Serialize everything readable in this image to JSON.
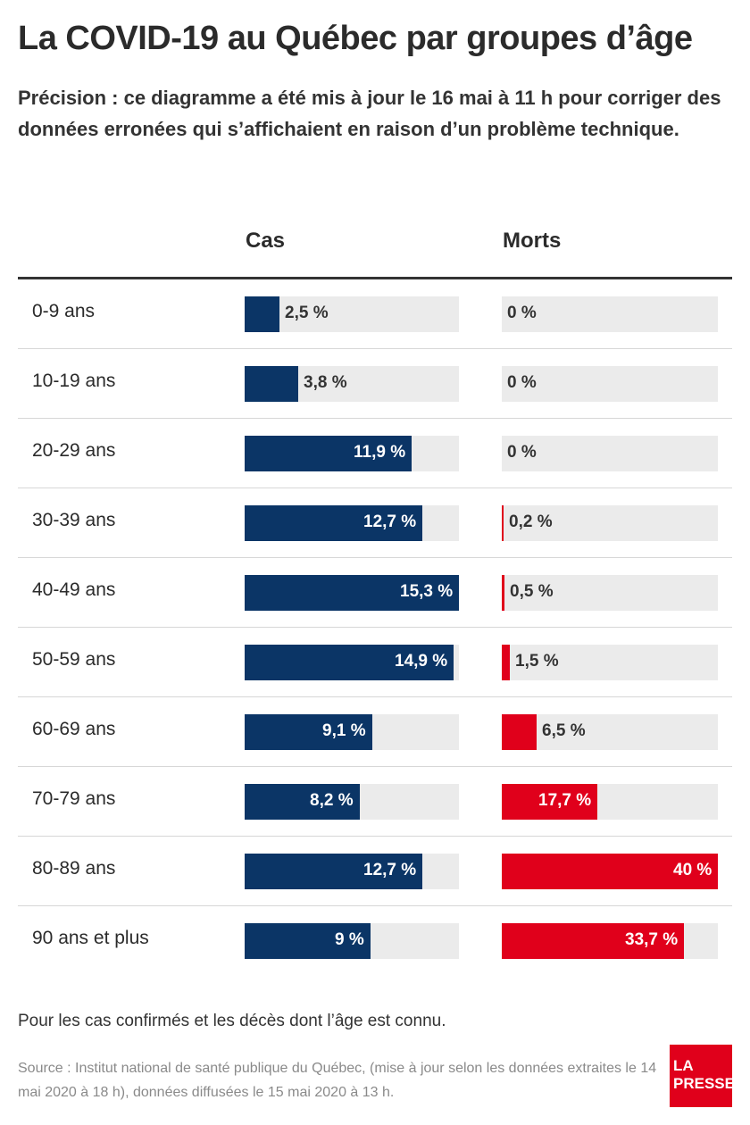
{
  "chart_data": {
    "type": "bar",
    "title": "La COVID-19 au Québec par groupes d’âge",
    "subtitle": "Précision : ce diagramme a été mis à jour le 16 mai à 11 h pour corriger des données erronées qui s’affichaient en raison d’un problème technique.",
    "categories": [
      "0-9 ans",
      "10-19 ans",
      "20-29 ans",
      "30-39 ans",
      "40-49 ans",
      "50-59 ans",
      "60-69 ans",
      "70-79 ans",
      "80-89 ans",
      "90 ans et plus"
    ],
    "series": [
      {
        "name": "Cas",
        "color": "#0b3566",
        "max": 15.3,
        "values": [
          2.5,
          3.8,
          11.9,
          12.7,
          15.3,
          14.9,
          9.1,
          8.2,
          12.7,
          9
        ],
        "labels": [
          "2,5 %",
          "3,8 %",
          "11,9 %",
          "12,7 %",
          "15,3 %",
          "14,9 %",
          "9,1 %",
          "8,2 %",
          "12,7 %",
          "9 %"
        ]
      },
      {
        "name": "Morts",
        "color": "#e0001b",
        "max": 40,
        "values": [
          0,
          0,
          0,
          0.2,
          0.5,
          1.5,
          6.5,
          17.7,
          40,
          33.7
        ],
        "labels": [
          "0 %",
          "0 %",
          "0 %",
          "0,2 %",
          "0,5 %",
          "1,5 %",
          "6,5 %",
          "17,7 %",
          "40 %",
          "33,7 %"
        ]
      }
    ],
    "note": "Pour les cas confirmés et les décès dont l’âge est connu.",
    "source": "Source : Institut national de santé publique du Québec, (mise à jour selon les données extraites le 14 mai 2020 à 18 h), données diffusées le 15 mai 2020 à 13 h."
  },
  "logo": {
    "line1": "LA",
    "line2": "PRESSE"
  }
}
